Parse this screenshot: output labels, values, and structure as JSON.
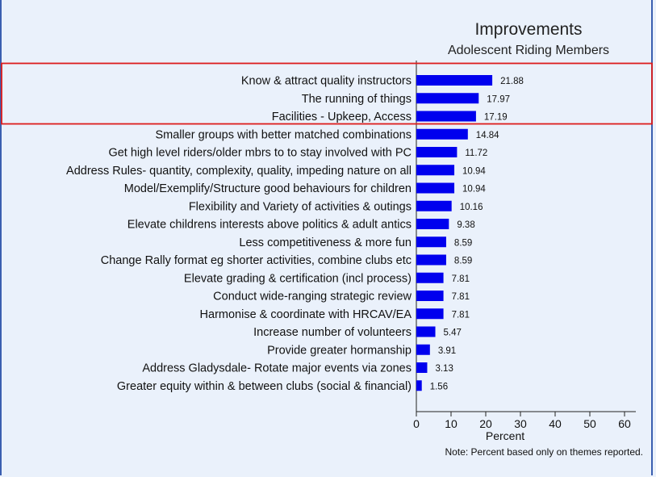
{
  "chart_data": {
    "type": "bar",
    "orientation": "horizontal",
    "title": "Improvements",
    "subtitle": "Adolescent Riding Members",
    "xlabel": "Percent",
    "note": "Note: Percent based only on themes reported.",
    "xlim": [
      0,
      60
    ],
    "xticks": [
      "0",
      "10",
      "20",
      "30",
      "40",
      "50",
      "60"
    ],
    "grid": false,
    "bar_color": "#0000ee",
    "highlight_color": "#dd1c1c",
    "highlighted_rows": [
      0,
      1,
      2
    ],
    "categories": [
      "Know & attract quality instructors",
      "The running of things",
      "Facilities - Upkeep, Access",
      "Smaller groups with better matched combinations",
      "Get high level riders/older mbrs to to stay involved with PC",
      "Address Rules- quantity, complexity, quality, impeding nature on all",
      "Model/Exemplify/Structure good behaviours for children",
      "Flexibility and Variety of activities & outings",
      "Elevate childrens interests above politics & adult antics",
      "Less competitiveness & more fun",
      "Change Rally format eg shorter activities, combine clubs etc",
      "Elevate grading & certification (incl process)",
      "Conduct wide-ranging strategic review",
      "Harmonise & coordinate with HRCAV/EA",
      "Increase number of volunteers",
      "Provide greater hormanship",
      "Address Gladysdale- Rotate major events via zones",
      "Greater equity within & between clubs (social & financial)"
    ],
    "values": [
      21.88,
      17.97,
      17.19,
      14.84,
      11.72,
      10.94,
      10.94,
      10.16,
      9.38,
      8.59,
      8.59,
      7.81,
      7.81,
      7.81,
      5.47,
      3.91,
      3.13,
      1.56
    ],
    "value_labels": [
      "21.88",
      "17.97",
      "17.19",
      "14.84",
      "11.72",
      "10.94",
      "10.94",
      "10.16",
      "9.38",
      "8.59",
      "8.59",
      "7.81",
      "7.81",
      "7.81",
      "5.47",
      "3.91",
      "3.13",
      "1.56"
    ]
  }
}
